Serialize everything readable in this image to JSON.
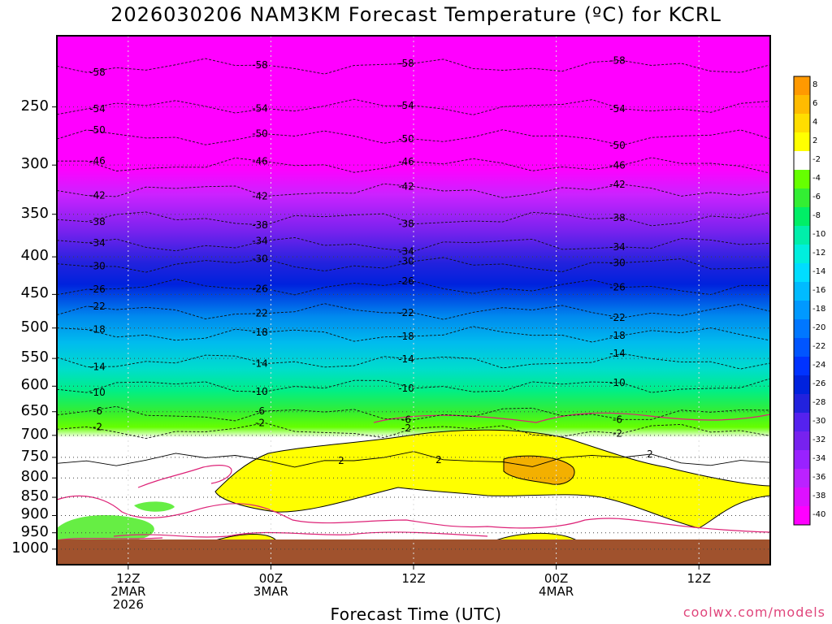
{
  "title": "2026030206 NAM3KM Forecast Temperature (ºC) for KCRL",
  "x_axis_title": "Forecast Time (UTC)",
  "credit": "coolwx.com/models",
  "colorbar_labels": [
    "8",
    "6",
    "4",
    "2",
    "-2",
    "-4",
    "-6",
    "-8",
    "-10",
    "-12",
    "-14",
    "-16",
    "-18",
    "-20",
    "-22",
    "-24",
    "-26",
    "-28",
    "-30",
    "-32",
    "-34",
    "-36",
    "-38",
    "-40"
  ],
  "chart_data": {
    "type": "heatmap",
    "title": "2026030206 NAM3KM Forecast Temperature (ºC) for KCRL",
    "xlabel": "Forecast Time (UTC)",
    "ylabel": "",
    "y_axis": "pressure (hPa, log scale, inverted)",
    "y_ticks": [
      250,
      300,
      350,
      400,
      450,
      500,
      550,
      600,
      650,
      700,
      750,
      800,
      850,
      900,
      950,
      1000
    ],
    "x_ticks": [
      {
        "label_lines": [
          "12Z",
          "2MAR",
          "2026"
        ],
        "time": "2026-03-02 12Z"
      },
      {
        "label_lines": [
          "00Z",
          "3MAR"
        ],
        "time": "2026-03-03 00Z"
      },
      {
        "label_lines": [
          "12Z"
        ],
        "time": "2026-03-03 12Z"
      },
      {
        "label_lines": [
          "00Z",
          "4MAR"
        ],
        "time": "2026-03-04 00Z"
      },
      {
        "label_lines": [
          "12Z"
        ],
        "time": "2026-03-04 12Z"
      }
    ],
    "x_range": [
      "2026-03-02 06Z",
      "2026-03-04 18Z"
    ],
    "ylim": [
      1050,
      200
    ],
    "colorbar_levels": [
      8,
      6,
      4,
      2,
      -2,
      -4,
      -6,
      -8,
      -10,
      -12,
      -14,
      -16,
      -18,
      -20,
      -22,
      -24,
      -26,
      -28,
      -30,
      -32,
      -34,
      -36,
      -38,
      -40
    ],
    "contour_interval": 4,
    "isotherm_approx_pressure": [
      {
        "value": -58,
        "p": 220
      },
      {
        "value": -54,
        "p": 250
      },
      {
        "value": -50,
        "p": 275
      },
      {
        "value": -46,
        "p": 300
      },
      {
        "value": -42,
        "p": 325
      },
      {
        "value": -38,
        "p": 355
      },
      {
        "value": -34,
        "p": 385
      },
      {
        "value": -30,
        "p": 410
      },
      {
        "value": -26,
        "p": 440
      },
      {
        "value": -22,
        "p": 475
      },
      {
        "value": -18,
        "p": 510
      },
      {
        "value": -14,
        "p": 555
      },
      {
        "value": -10,
        "p": 600
      },
      {
        "value": -6,
        "p": 655
      },
      {
        "value": -2,
        "p": 690
      },
      {
        "value": 2,
        "p": 755
      }
    ],
    "grid": true,
    "legend": "colorbar right",
    "colors": {
      "below_ground": "#a0522d",
      "cold_top": "#ff00ff",
      "above_zero": "#ffff00",
      "near_zero": "#ffffff",
      "zero_contour": "#dd2277"
    }
  }
}
